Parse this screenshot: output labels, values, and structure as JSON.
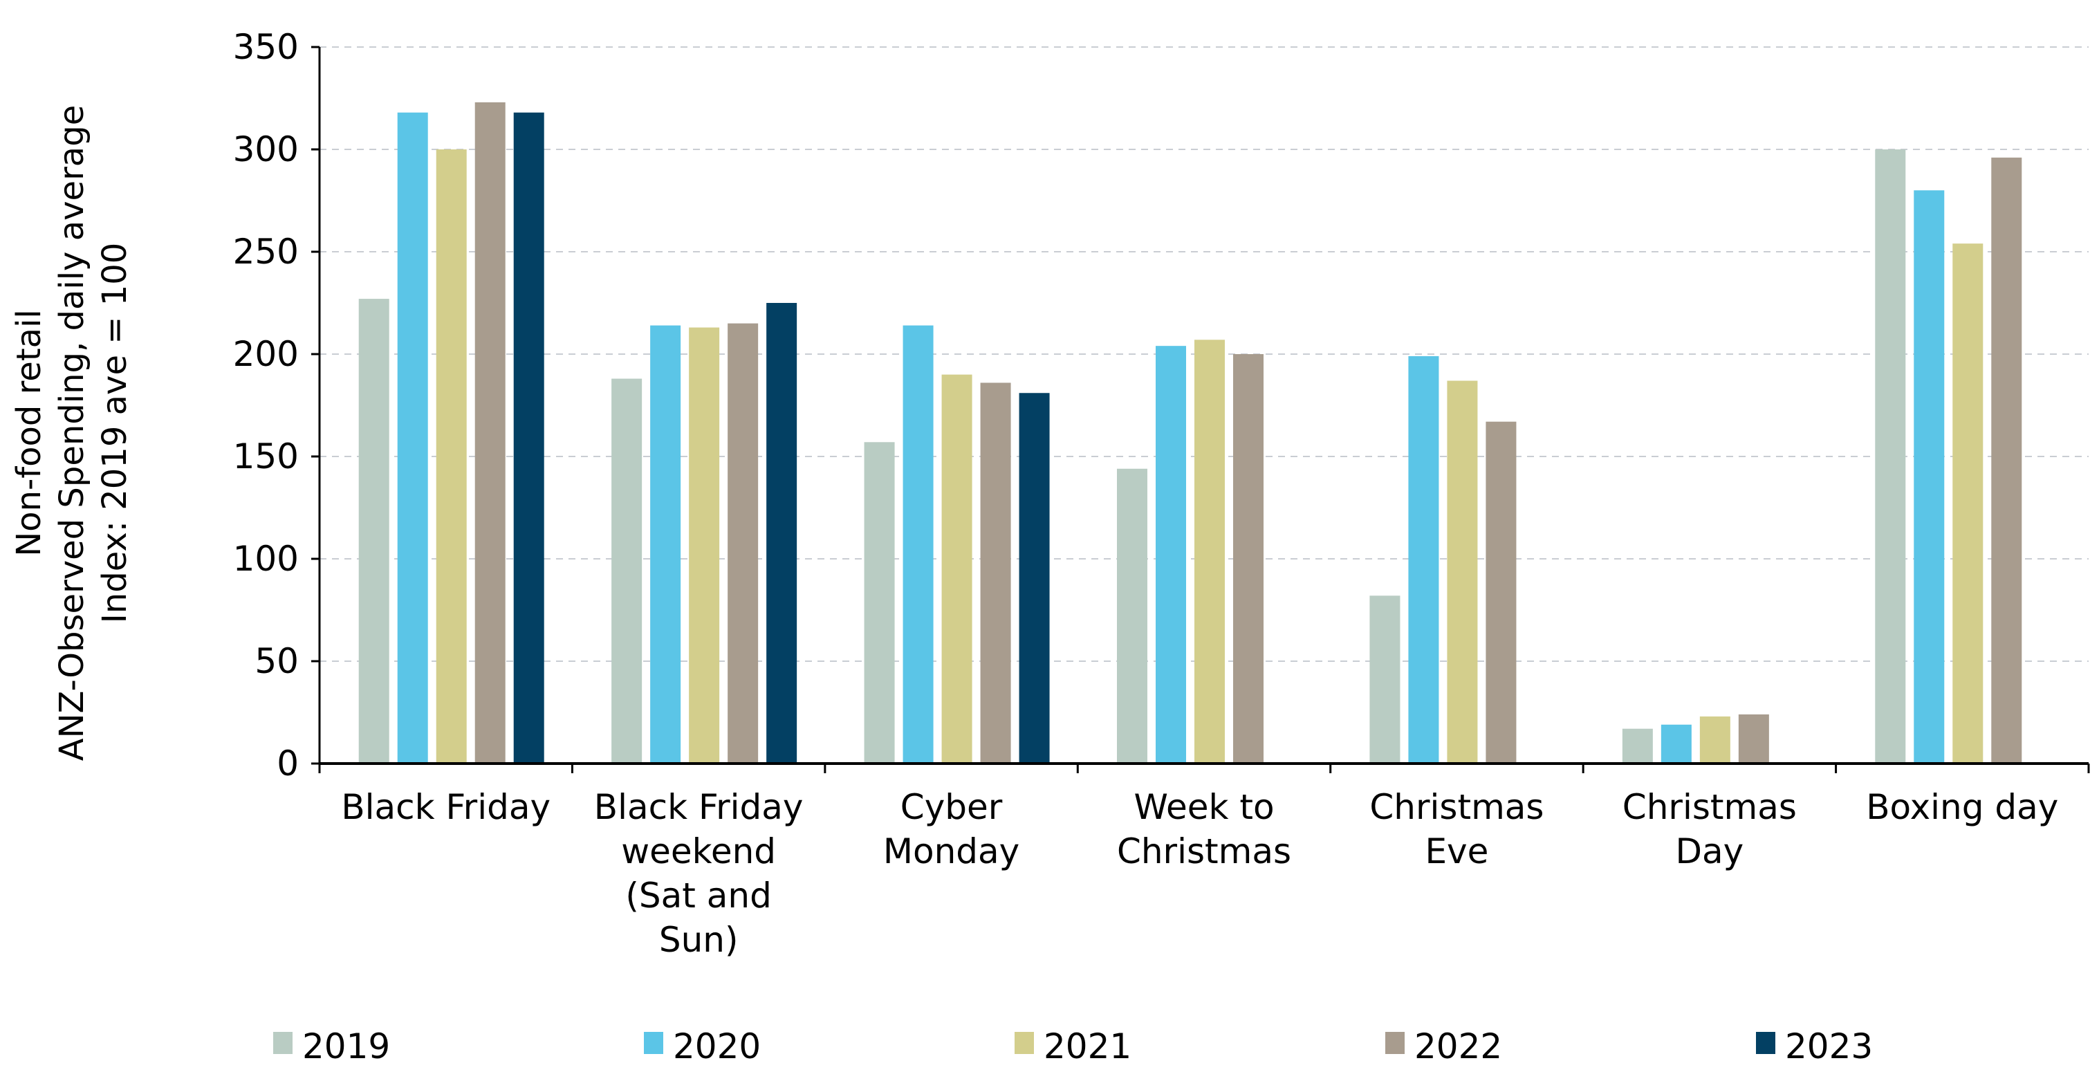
{
  "chart_data": {
    "type": "bar",
    "title": "",
    "xlabel": "",
    "ylabel": "Non-food retail\nANZ-Observed Spending, daily average\nIndex: 2019 ave = 100",
    "ylim": [
      0,
      350
    ],
    "yticks": [
      0,
      50,
      100,
      150,
      200,
      250,
      300,
      350
    ],
    "grid": true,
    "legend_position": "bottom",
    "categories": [
      "Black Friday",
      "Black Friday\nweekend\n(Sat and\nSun)",
      "Cyber\nMonday",
      "Week to\nChristmas",
      "Christmas\nEve",
      "Christmas\nDay",
      "Boxing day"
    ],
    "series": [
      {
        "name": "2019",
        "color": "#B9CCC3",
        "values": [
          227,
          188,
          157,
          144,
          82,
          17,
          300
        ]
      },
      {
        "name": "2020",
        "color": "#5BC5E7",
        "values": [
          318,
          214,
          214,
          204,
          199,
          19,
          280
        ]
      },
      {
        "name": "2021",
        "color": "#D3CE8C",
        "values": [
          300,
          213,
          190,
          207,
          187,
          23,
          254
        ]
      },
      {
        "name": "2022",
        "color": "#A89C8E",
        "values": [
          323,
          215,
          186,
          200,
          167,
          24,
          296
        ]
      },
      {
        "name": "2023",
        "color": "#034063",
        "values": [
          318,
          225,
          181,
          null,
          null,
          null,
          null
        ]
      }
    ]
  }
}
